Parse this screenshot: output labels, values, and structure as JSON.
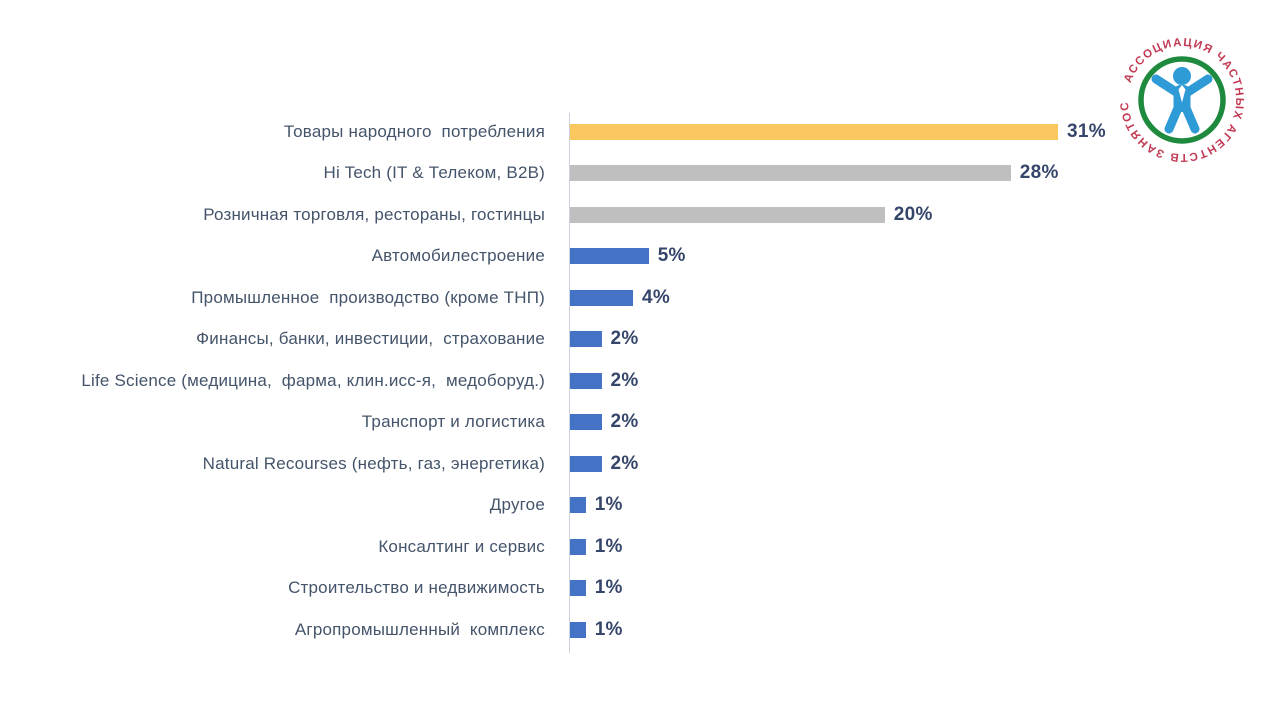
{
  "page": {
    "background_color": "#ffffff"
  },
  "logo": {
    "organization": "Ассоциация частных агентств занятости",
    "ring_text": "АССОЦИАЦИЯ ЧАСТНЫХ АГЕНТСТВ ЗАНЯТОСТИ",
    "ring_words": [
      "АССОЦИАЦИЯ",
      "ЧАСТНЫХ",
      "АГЕНТСТВ",
      "ЗАНЯТОСТИ"
    ],
    "colors": {
      "ring": "#1E8A3E",
      "figure": "#2E9BD6",
      "text": "#C23A54"
    }
  },
  "chart_data": {
    "type": "bar",
    "orientation": "horizontal",
    "title": "",
    "xlabel": "",
    "ylabel": "",
    "grid": false,
    "legend": false,
    "xlim": [
      0,
      31
    ],
    "categories": [
      "Товары народного  потребления",
      "Hi Tech (IT & Телеком, B2B)",
      "Розничная торговля, рестораны, гостинцы",
      "Автомобилестроение",
      "Промышленное  производство (кроме ТНП)",
      "Финансы, банки, инвестиции,  страхование",
      "Life Science (медицина,  фарма, клин.исс-я,  медоборуд.)",
      "Транспорт и логистика",
      "Natural Recourses (нефть, газ, энергетика)",
      "Другое",
      "Консалтинг и сервис",
      "Строительство и недвижимость",
      "Агропромышленный  комплекс"
    ],
    "values": [
      31,
      28,
      20,
      5,
      4,
      2,
      2,
      2,
      2,
      1,
      1,
      1,
      1
    ],
    "value_labels": [
      "31%",
      "28%",
      "20%",
      "5%",
      "4%",
      "2%",
      "2%",
      "2%",
      "2%",
      "1%",
      "1%",
      "1%",
      "1%"
    ],
    "bar_colors": [
      "#FBC75F",
      "#BFBFBF",
      "#BFBFBF",
      "#4472C4",
      "#4472C4",
      "#4472C4",
      "#4472C4",
      "#4472C4",
      "#4472C4",
      "#4472C4",
      "#4472C4",
      "#4472C4",
      "#4472C4"
    ],
    "colors_legend": {
      "highlight": "#FBC75F",
      "secondary": "#BFBFBF",
      "primary": "#4472C4"
    },
    "value_label_color": "#36466B",
    "category_label_color": "#44546A",
    "axis_line_color": "#CBD2DC"
  }
}
